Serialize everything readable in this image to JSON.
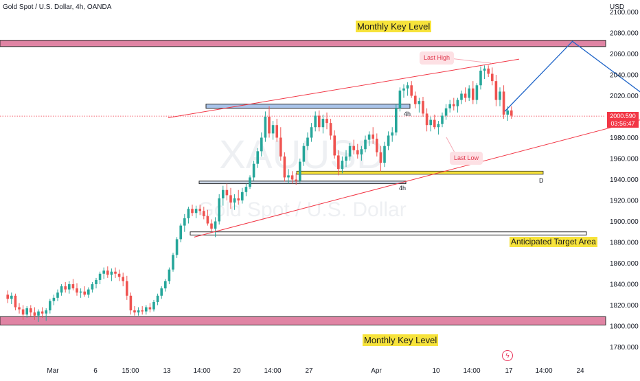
{
  "header": {
    "title": "Gold Spot / U.S. Dollar, 4h, OANDA",
    "currency": "USD"
  },
  "price_badge": {
    "price": "2000.590",
    "countdown": "03:56:47"
  },
  "annotations": {
    "monthly_top": "Monthly Key Level",
    "monthly_bottom": "Monthly Key Level",
    "target": "Anticipated Target Area",
    "last_high": "Last High",
    "last_low": "Last Low",
    "tf_label_1": "4h",
    "tf_label_2": "4h",
    "d_label": "D"
  },
  "watermark": {
    "symbol": "XAUUSD",
    "name": "Gold Spot / U.S. Dollar"
  },
  "colors": {
    "up": "#26a69a",
    "down": "#ef5350",
    "zone": "#d65b85",
    "channel": "#f23645",
    "projection": "#1e64c8",
    "highlight": "#f7e33b"
  },
  "chart_data": {
    "type": "candlestick",
    "y_ticks": [
      "1780.000",
      "1800.000",
      "1820.000",
      "1840.000",
      "1860.000",
      "1880.000",
      "1900.000",
      "1920.000",
      "1940.000",
      "1960.000",
      "1980.000",
      "2000.000",
      "2020.000",
      "2040.000",
      "2060.000",
      "2080.000",
      "2100.000"
    ],
    "x_ticks": [
      "Mar",
      "6",
      "15:00",
      "13",
      "14:00",
      "20",
      "14:00",
      "27",
      "Apr",
      "10",
      "14:00",
      "17",
      "14:00",
      "24"
    ],
    "ylim": [
      1770,
      2105
    ],
    "current_price": 2000.59,
    "key_levels": [
      {
        "name": "Monthly Key Level",
        "from": 2067,
        "to": 2073
      },
      {
        "name": "Monthly Key Level",
        "from": 1801,
        "to": 1809
      }
    ],
    "horizontal_levels": [
      {
        "value": 2010
      },
      {
        "value": 1946
      },
      {
        "value": 1937
      },
      {
        "value": 1889,
        "name": "Anticipated Target Area"
      }
    ],
    "channel": {
      "upper": [
        [
          0,
          1999
        ],
        [
          54,
          2055
        ]
      ],
      "lower": [
        [
          4,
          1885
        ],
        [
          80,
          2009
        ]
      ]
    },
    "projection": [
      [
        7.5,
        2005
      ],
      [
        9.2,
        2072
      ],
      [
        15.5,
        1893
      ]
    ],
    "candles": [
      [
        2,
        1830,
        1834,
        1822,
        1826
      ],
      [
        3,
        1826,
        1832,
        1821,
        1829
      ],
      [
        4,
        1829,
        1831,
        1815,
        1818
      ],
      [
        5,
        1818,
        1822,
        1812,
        1816
      ],
      [
        6,
        1816,
        1820,
        1806,
        1811
      ],
      [
        7,
        1811,
        1819,
        1808,
        1817
      ],
      [
        8,
        1817,
        1820,
        1809,
        1813
      ],
      [
        9,
        1813,
        1818,
        1806,
        1810
      ],
      [
        10,
        1810,
        1816,
        1804,
        1814
      ],
      [
        11,
        1814,
        1818,
        1808,
        1812
      ],
      [
        12,
        1812,
        1817,
        1805,
        1815
      ],
      [
        13,
        1815,
        1826,
        1812,
        1824
      ],
      [
        14,
        1824,
        1830,
        1820,
        1827
      ],
      [
        15,
        1827,
        1835,
        1824,
        1832
      ],
      [
        16,
        1832,
        1840,
        1829,
        1838
      ],
      [
        17,
        1838,
        1842,
        1832,
        1835
      ],
      [
        18,
        1835,
        1843,
        1831,
        1840
      ],
      [
        19,
        1840,
        1845,
        1834,
        1836
      ],
      [
        20,
        1836,
        1841,
        1829,
        1832
      ],
      [
        21,
        1832,
        1836,
        1827,
        1833
      ],
      [
        22,
        1833,
        1838,
        1828,
        1830
      ],
      [
        23,
        1830,
        1837,
        1827,
        1835
      ],
      [
        24,
        1835,
        1842,
        1832,
        1840
      ],
      [
        25,
        1840,
        1846,
        1836,
        1844
      ],
      [
        26,
        1844,
        1852,
        1840,
        1850
      ],
      [
        27,
        1850,
        1856,
        1845,
        1853
      ],
      [
        28,
        1853,
        1857,
        1846,
        1849
      ],
      [
        29,
        1849,
        1855,
        1843,
        1852
      ],
      [
        30,
        1852,
        1856,
        1846,
        1850
      ],
      [
        31,
        1850,
        1854,
        1843,
        1847
      ],
      [
        32,
        1847,
        1851,
        1838,
        1843
      ],
      [
        33,
        1843,
        1848,
        1825,
        1829
      ],
      [
        34,
        1829,
        1832,
        1811,
        1815
      ],
      [
        35,
        1815,
        1819,
        1810,
        1813
      ],
      [
        36,
        1813,
        1818,
        1810,
        1815
      ],
      [
        37,
        1815,
        1819,
        1811,
        1814
      ],
      [
        38,
        1814,
        1820,
        1811,
        1818
      ],
      [
        39,
        1818,
        1822,
        1813,
        1816
      ],
      [
        40,
        1816,
        1825,
        1814,
        1823
      ],
      [
        41,
        1823,
        1831,
        1820,
        1829
      ],
      [
        42,
        1829,
        1838,
        1826,
        1836
      ],
      [
        43,
        1836,
        1845,
        1833,
        1843
      ],
      [
        44,
        1843,
        1856,
        1840,
        1854
      ],
      [
        45,
        1854,
        1870,
        1852,
        1868
      ],
      [
        46,
        1868,
        1885,
        1865,
        1883
      ],
      [
        47,
        1883,
        1898,
        1880,
        1896
      ],
      [
        48,
        1896,
        1907,
        1890,
        1903
      ],
      [
        49,
        1903,
        1914,
        1898,
        1912
      ],
      [
        50,
        1912,
        1916,
        1905,
        1908
      ],
      [
        51,
        1908,
        1915,
        1903,
        1912
      ],
      [
        52,
        1912,
        1916,
        1906,
        1910
      ],
      [
        53,
        1910,
        1914,
        1902,
        1905
      ],
      [
        54,
        1905,
        1911,
        1896,
        1898
      ],
      [
        55,
        1898,
        1902,
        1890,
        1893
      ],
      [
        56,
        1893,
        1904,
        1885,
        1900
      ],
      [
        57,
        1900,
        1926,
        1897,
        1922
      ],
      [
        58,
        1922,
        1934,
        1915,
        1930
      ],
      [
        59,
        1930,
        1936,
        1920,
        1925
      ],
      [
        60,
        1925,
        1932,
        1912,
        1918
      ],
      [
        61,
        1918,
        1926,
        1911,
        1922
      ],
      [
        62,
        1922,
        1930,
        1916,
        1920
      ],
      [
        63,
        1920,
        1932,
        1917,
        1928
      ],
      [
        64,
        1928,
        1936,
        1924,
        1933
      ],
      [
        65,
        1933,
        1944,
        1931,
        1942
      ],
      [
        66,
        1942,
        1958,
        1939,
        1955
      ],
      [
        67,
        1955,
        1970,
        1951,
        1967
      ],
      [
        68,
        1967,
        1985,
        1962,
        1980
      ],
      [
        69,
        1980,
        2005,
        1976,
        2000
      ],
      [
        70,
        2000,
        2010,
        1980,
        1984
      ],
      [
        71,
        1984,
        1996,
        1978,
        1992
      ],
      [
        72,
        1992,
        1998,
        1976,
        1980
      ],
      [
        73,
        1980,
        1990,
        1958,
        1962
      ],
      [
        74,
        1962,
        1966,
        1938,
        1942
      ],
      [
        75,
        1942,
        1950,
        1936,
        1944
      ],
      [
        76,
        1944,
        1948,
        1936,
        1940
      ],
      [
        77,
        1940,
        1946,
        1935,
        1939
      ],
      [
        78,
        1939,
        1960,
        1937,
        1957
      ],
      [
        79,
        1957,
        1975,
        1953,
        1972
      ],
      [
        80,
        1972,
        1985,
        1968,
        1980
      ],
      [
        81,
        1980,
        1994,
        1976,
        1990
      ],
      [
        82,
        1990,
        2005,
        1986,
        2001
      ],
      [
        83,
        2001,
        2006,
        1986,
        1990
      ],
      [
        84,
        1990,
        2002,
        1984,
        1998
      ],
      [
        85,
        1998,
        2004,
        1988,
        1994
      ],
      [
        86,
        1994,
        1998,
        1978,
        1982
      ],
      [
        87,
        1982,
        1987,
        1960,
        1963
      ],
      [
        88,
        1963,
        1968,
        1944,
        1950
      ],
      [
        89,
        1950,
        1962,
        1946,
        1958
      ],
      [
        90,
        1958,
        1968,
        1952,
        1962
      ],
      [
        91,
        1962,
        1975,
        1958,
        1972
      ],
      [
        92,
        1972,
        1978,
        1964,
        1968
      ],
      [
        93,
        1968,
        1974,
        1960,
        1964
      ],
      [
        94,
        1964,
        1972,
        1958,
        1969
      ],
      [
        95,
        1969,
        1982,
        1966,
        1978
      ],
      [
        96,
        1978,
        1986,
        1972,
        1983
      ],
      [
        97,
        1983,
        1990,
        1974,
        1979
      ],
      [
        98,
        1979,
        1984,
        1962,
        1966
      ],
      [
        99,
        1966,
        1972,
        1948,
        1956
      ],
      [
        100,
        1956,
        1976,
        1952,
        1972
      ],
      [
        101,
        1972,
        1986,
        1968,
        1982
      ],
      [
        102,
        1982,
        1990,
        1976,
        1985
      ],
      [
        103,
        1985,
        2012,
        1982,
        2008
      ],
      [
        104,
        2008,
        2028,
        2005,
        2025
      ],
      [
        105,
        2025,
        2031,
        2018,
        2027
      ],
      [
        106,
        2027,
        2033,
        2020,
        2030
      ],
      [
        107,
        2030,
        2034,
        2018,
        2020
      ],
      [
        108,
        2020,
        2024,
        2008,
        2012
      ],
      [
        109,
        2012,
        2018,
        2004,
        2015
      ],
      [
        110,
        2015,
        2019,
        2000,
        2003
      ],
      [
        111,
        2003,
        2008,
        1986,
        1992
      ],
      [
        112,
        1992,
        2000,
        1986,
        1997
      ],
      [
        113,
        1997,
        2002,
        1988,
        1990
      ],
      [
        114,
        1990,
        1996,
        1983,
        1993
      ],
      [
        115,
        1993,
        2004,
        1990,
        2001
      ],
      [
        116,
        2001,
        2012,
        1997,
        2008
      ],
      [
        117,
        2008,
        2016,
        2004,
        2012
      ],
      [
        118,
        2012,
        2018,
        2006,
        2010
      ],
      [
        119,
        2010,
        2018,
        2004,
        2016
      ],
      [
        120,
        2016,
        2025,
        2012,
        2022
      ],
      [
        121,
        2022,
        2028,
        2014,
        2018
      ],
      [
        122,
        2018,
        2030,
        2015,
        2027
      ],
      [
        123,
        2027,
        2034,
        2012,
        2016
      ],
      [
        124,
        2016,
        2032,
        2012,
        2030
      ],
      [
        125,
        2030,
        2048,
        2026,
        2044
      ],
      [
        126,
        2044,
        2049,
        2036,
        2046
      ],
      [
        127,
        2046,
        2049,
        2038,
        2041
      ],
      [
        128,
        2041,
        2047,
        2030,
        2034
      ],
      [
        129,
        2034,
        2040,
        2010,
        2016
      ],
      [
        130,
        2016,
        2028,
        2010,
        2024
      ],
      [
        131,
        2024,
        2030,
        1998,
        2002
      ],
      [
        132,
        2002,
        2010,
        1996,
        2006
      ],
      [
        133,
        2006,
        2010,
        1998,
        2001
      ]
    ]
  }
}
